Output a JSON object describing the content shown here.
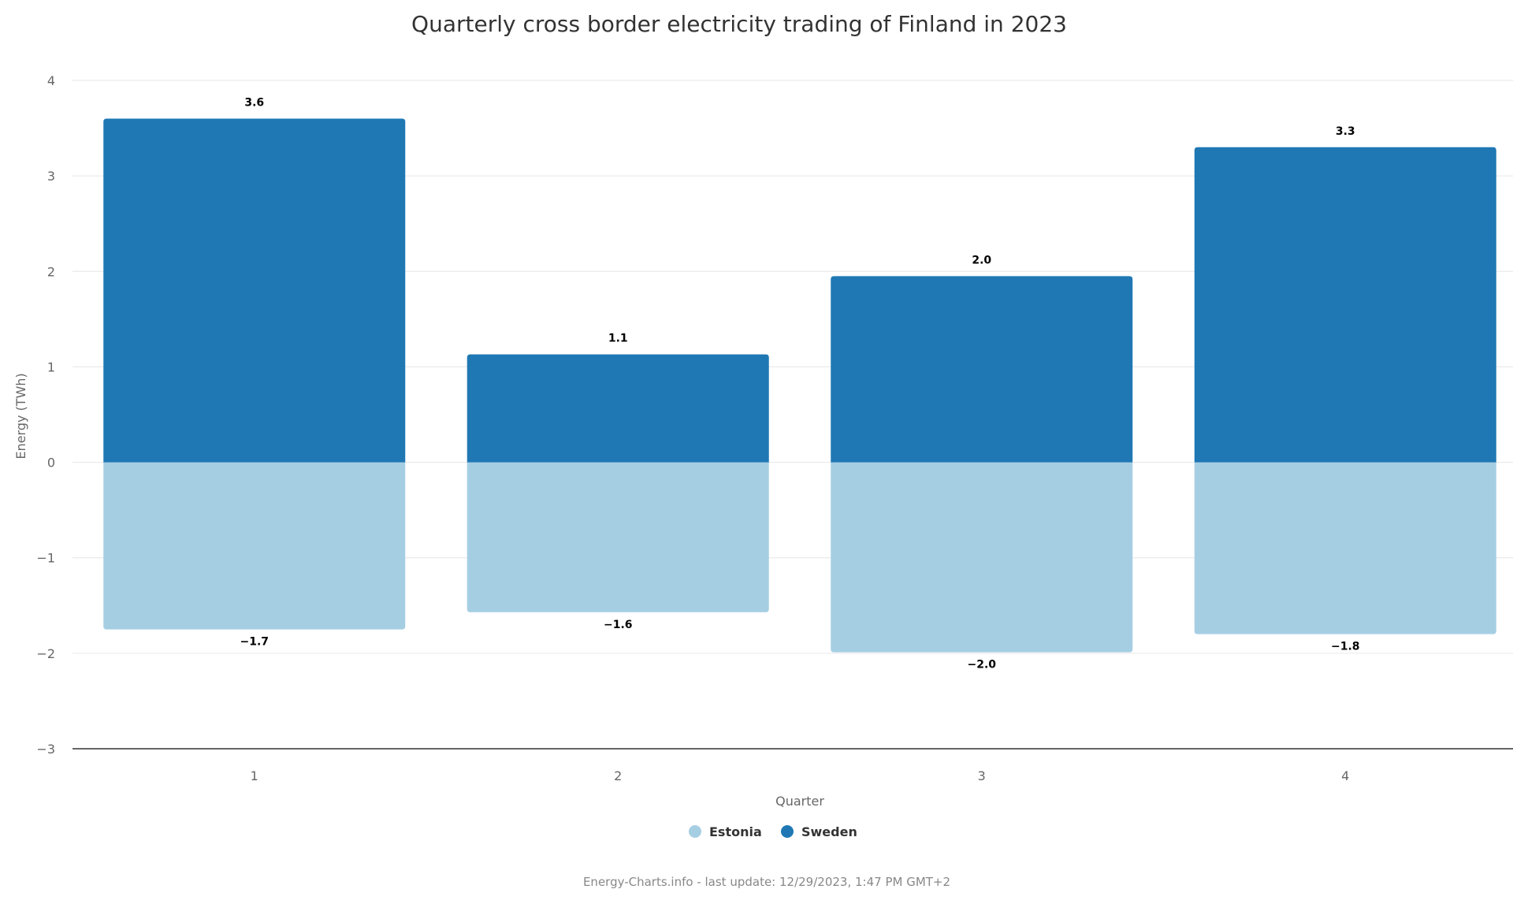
{
  "chart_data": {
    "type": "bar",
    "stacked": true,
    "title": "Quarterly cross border electricity trading of Finland in 2023",
    "xlabel": "Quarter",
    "ylabel": "Energy (TWh)",
    "categories": [
      "1",
      "2",
      "3",
      "4"
    ],
    "ylim": [
      -3,
      4
    ],
    "yticks": [
      4,
      3,
      2,
      1,
      0,
      -1,
      -2,
      -3
    ],
    "ytick_labels": [
      "4",
      "3",
      "2",
      "1",
      "0",
      "−1",
      "−2",
      "−3"
    ],
    "series": [
      {
        "name": "Estonia",
        "color": "#a6cee3",
        "values": [
          -1.75,
          -1.57,
          -1.99,
          -1.8
        ],
        "labels": [
          "−1.7",
          "−1.6",
          "−2.0",
          "−1.8"
        ]
      },
      {
        "name": "Sweden",
        "color": "#1f78b4",
        "values": [
          3.6,
          1.13,
          1.95,
          3.3
        ],
        "labels": [
          "3.6",
          "1.1",
          "2.0",
          "3.3"
        ]
      }
    ],
    "legend": "bottom-center",
    "grid": true
  },
  "credit": "Energy-Charts.info - last update: 12/29/2023, 1:47 PM GMT+2"
}
